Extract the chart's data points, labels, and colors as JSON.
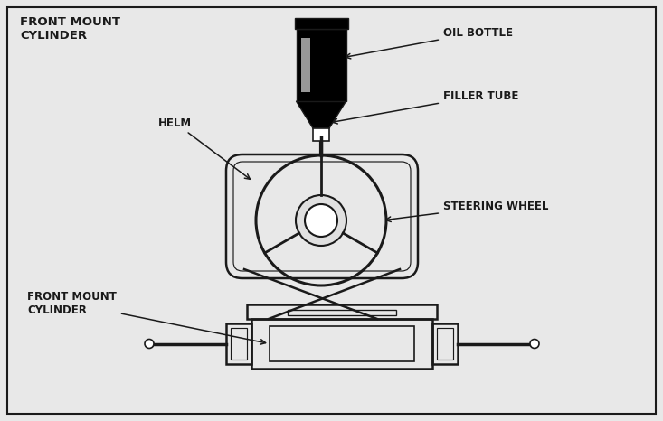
{
  "bg_color": "#e8e8e8",
  "inner_bg": "#ffffff",
  "line_color": "#1a1a1a",
  "title_text": "FRONT MOUNT\nCYLINDER",
  "labels": {
    "oil_bottle": "OIL BOTTLE",
    "filler_tube": "FILLER TUBE",
    "helm": "HELM",
    "steering_wheel": "STEERING WHEEL",
    "front_mount_cylinder": "FRONT MOUNT\nCYLINDER"
  },
  "font_size_labels": 8.5,
  "font_size_title": 9.5
}
